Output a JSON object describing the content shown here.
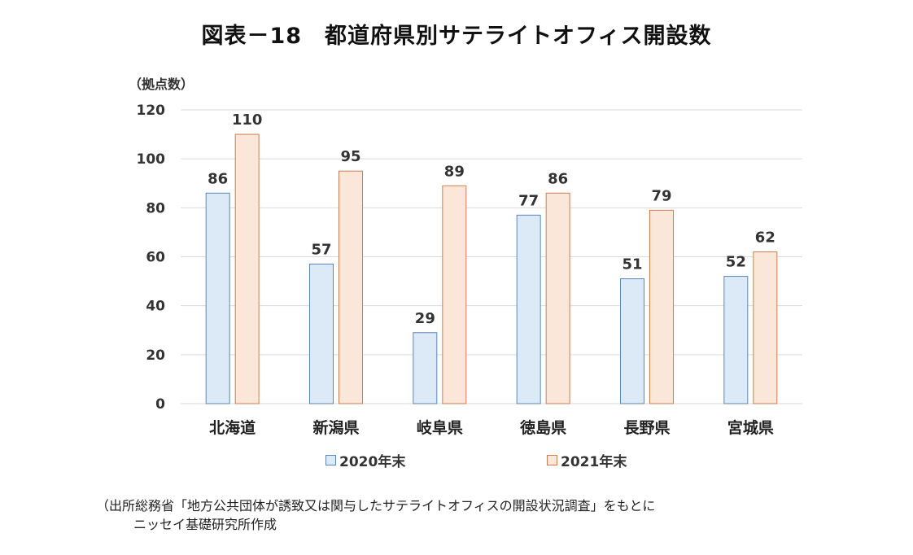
{
  "title": "図表－18　都道府県別サテライトオフィス開設数",
  "source": {
    "line1": "（出所総務省「地方公共団体が誘致又は関与したサテライトオフィスの開設状況調査」をもとに",
    "line2": "ニッセイ基礎研究所作成"
  },
  "colors": {
    "s2020_fill": "#dce9f6",
    "s2020_stroke": "#5b86b8",
    "s2021_fill": "#fbe6da",
    "s2021_stroke": "#d07c4c",
    "grid": "#d9d9d9"
  },
  "chart_data": {
    "type": "bar",
    "ylabel": "（拠点数）",
    "ylim": [
      0,
      120
    ],
    "yticks": [
      0,
      20,
      40,
      60,
      80,
      100,
      120
    ],
    "grid": true,
    "legend_position": "bottom",
    "categories": [
      "北海道",
      "新潟県",
      "岐阜県",
      "徳島県",
      "長野県",
      "宮城県"
    ],
    "series": [
      {
        "name": "2020年末",
        "values": [
          86,
          57,
          29,
          77,
          51,
          52
        ]
      },
      {
        "name": "2021年末",
        "values": [
          110,
          95,
          89,
          86,
          79,
          62
        ]
      }
    ]
  }
}
